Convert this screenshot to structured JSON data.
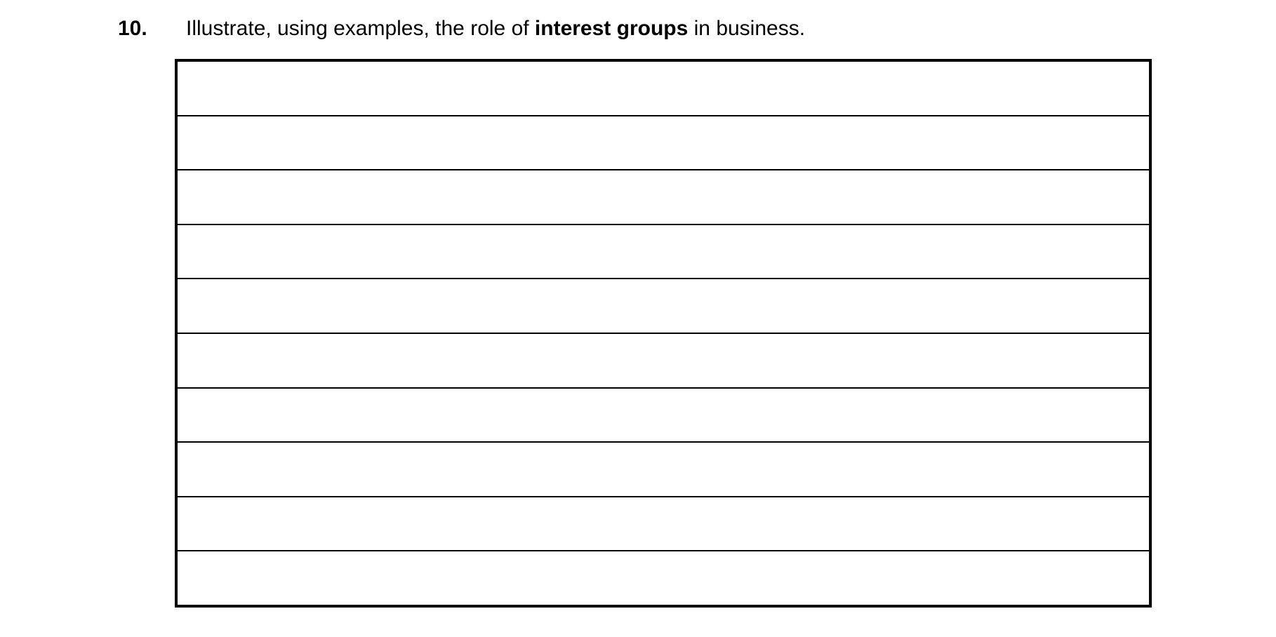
{
  "page": {
    "background_color": "#ffffff",
    "text_color": "#000000"
  },
  "question": {
    "number": "10.",
    "text_prefix": "Illustrate, using examples, the role of ",
    "text_bold": "interest groups",
    "text_suffix": " in business."
  },
  "answer_box": {
    "line_count": 10,
    "border_color": "#000000"
  }
}
